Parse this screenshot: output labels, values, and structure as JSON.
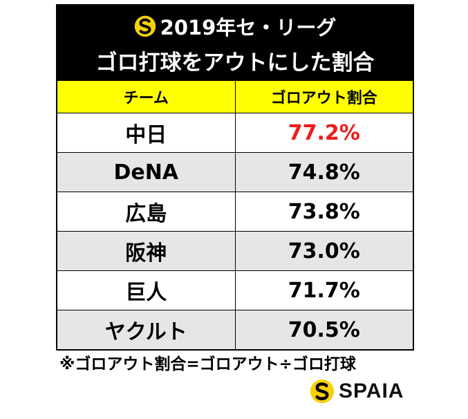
{
  "title": {
    "line1": "2019年セ・リーグ",
    "line2": "ゴロ打球をアウトにした割合"
  },
  "table": {
    "headers": [
      "チーム",
      "ゴロアウト割合"
    ],
    "rows": [
      {
        "team": "中日",
        "rate": "77.2%"
      },
      {
        "team": "DeNA",
        "rate": "74.8%"
      },
      {
        "team": "広島",
        "rate": "73.8%"
      },
      {
        "team": "阪神",
        "rate": "73.0%"
      },
      {
        "team": "巨人",
        "rate": "71.7%"
      },
      {
        "team": "ヤクルト",
        "rate": "70.5%"
      }
    ]
  },
  "footnote": "※ゴロアウト割合=ゴロアウト÷ゴロ打球",
  "brand": {
    "name": "SPAIA",
    "logo_icon": "spaia-logo-icon"
  },
  "colors": {
    "header_bg": "#ffff00",
    "title_bg": "#000000",
    "highlight_text": "#ee1c1c",
    "alt_row_bg": "#e6e6e6",
    "logo_yellow": "#f5d10a"
  }
}
